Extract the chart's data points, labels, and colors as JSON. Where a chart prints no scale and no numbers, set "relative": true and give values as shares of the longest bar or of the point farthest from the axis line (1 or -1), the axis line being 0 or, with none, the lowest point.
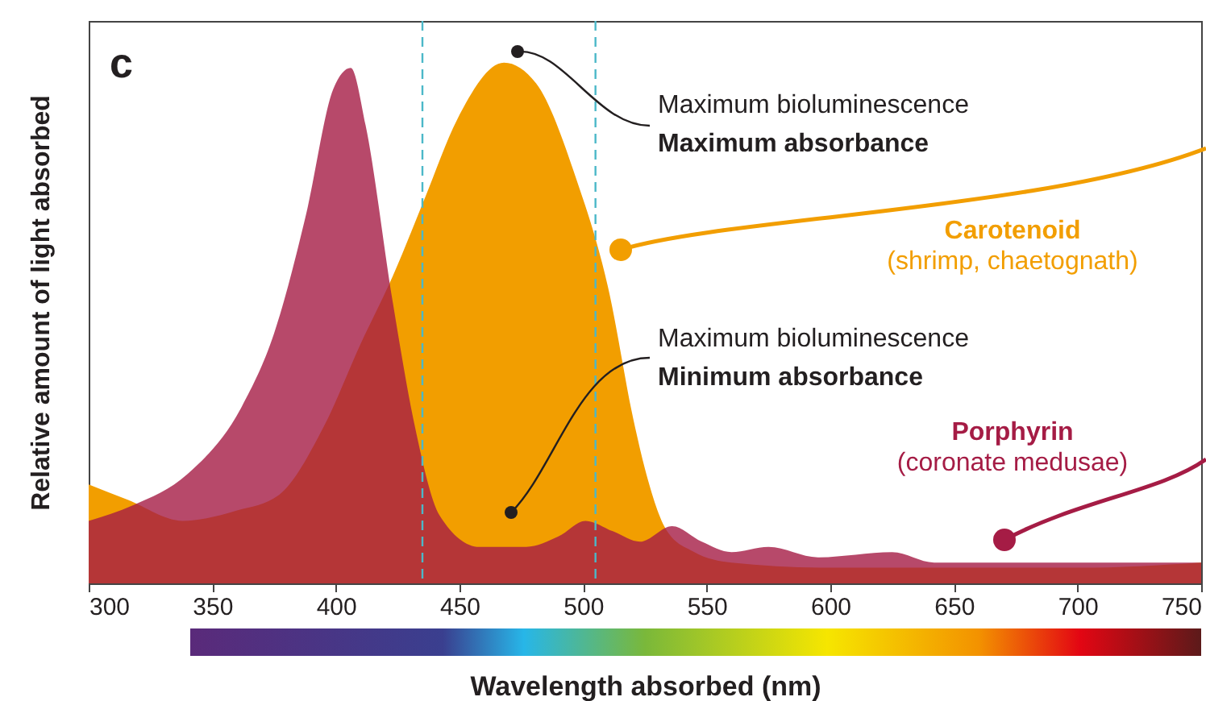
{
  "chart_data": {
    "type": "area",
    "relative": true,
    "xlabel": "Wavelength absorbed (nm)",
    "ylabel": "Relative amount of light absorbed",
    "xlim": [
      300,
      750
    ],
    "xticks": [
      300,
      350,
      400,
      450,
      500,
      550,
      600,
      650,
      700,
      750
    ],
    "series": [
      {
        "name": "Carotenoid",
        "color": "#f29e00",
        "x": [
          300,
          316,
          338,
          360,
          377,
          395,
          410,
          423,
          436,
          449,
          468,
          481,
          497,
          510,
          521,
          525,
          534,
          545,
          560,
          600,
          650,
          700,
          750
        ],
        "values": [
          0.19,
          0.16,
          0.12,
          0.14,
          0.17,
          0.3,
          0.46,
          0.59,
          0.74,
          0.89,
          1.0,
          0.96,
          0.78,
          0.57,
          0.3,
          0.22,
          0.1,
          0.06,
          0.04,
          0.03,
          0.03,
          0.03,
          0.04
        ]
      },
      {
        "name": "Porphyrin",
        "color": "#a51c45",
        "x": [
          300,
          318,
          340,
          362,
          375,
          388,
          399,
          406,
          412,
          423,
          432,
          442,
          458,
          477,
          490,
          501,
          512,
          523,
          536,
          548,
          560,
          575,
          595,
          625,
          642,
          675,
          710,
          750
        ],
        "values": [
          0.12,
          0.15,
          0.21,
          0.34,
          0.48,
          0.71,
          0.95,
          0.99,
          0.88,
          0.54,
          0.3,
          0.13,
          0.07,
          0.07,
          0.09,
          0.12,
          0.1,
          0.08,
          0.11,
          0.08,
          0.06,
          0.07,
          0.05,
          0.06,
          0.04,
          0.04,
          0.04,
          0.04
        ]
      }
    ],
    "ref_lines": [
      {
        "axis": "x",
        "value": 435,
        "color": "#4bb8c8",
        "line_style": "dashed"
      },
      {
        "axis": "x",
        "value": 505,
        "color": "#4bb8c8",
        "line_style": "dashed"
      }
    ],
    "annotations": [
      "c",
      "Maximum bioluminescence",
      "Maximum absorbance",
      "Maximum bioluminescence",
      "Minimum absorbance",
      "(shrimp, chaetognath)",
      "(coronate medusae)"
    ]
  }
}
